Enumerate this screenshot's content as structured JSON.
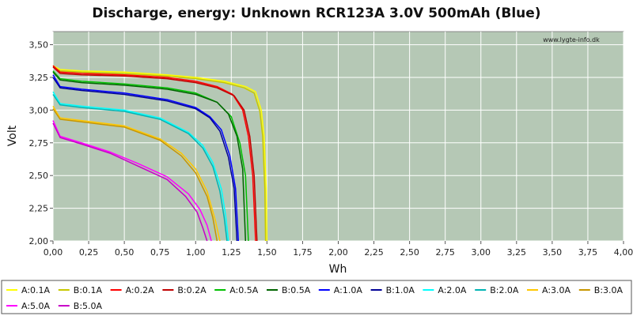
{
  "chart_data": {
    "type": "line",
    "title": "Discharge, energy: Unknown RCR123A 3.0V 500mAh (Blue)",
    "xlabel": "Wh",
    "ylabel": "Volt",
    "xlim": [
      0,
      4.0
    ],
    "ylim": [
      2.0,
      3.6
    ],
    "x_ticks": [
      "0,00",
      "0,25",
      "0,50",
      "0,75",
      "1,00",
      "1,25",
      "1,50",
      "1,75",
      "2,00",
      "2,25",
      "2,50",
      "2,75",
      "3,00",
      "3,25",
      "3,50",
      "3,75",
      "4,00"
    ],
    "y_ticks": [
      "2,00",
      "2,25",
      "2,50",
      "2,75",
      "3,00",
      "3,25",
      "3,50"
    ],
    "grid": true,
    "watermark": "www.lygte-info.dk",
    "legend_position": "bottom",
    "plot_background": "#b5c8b5",
    "series": [
      {
        "name": "A:0.1A",
        "color": "#ffff00",
        "points": [
          [
            0,
            3.34
          ],
          [
            0.05,
            3.31
          ],
          [
            0.2,
            3.3
          ],
          [
            0.5,
            3.29
          ],
          [
            0.8,
            3.27
          ],
          [
            1.0,
            3.25
          ],
          [
            1.2,
            3.22
          ],
          [
            1.35,
            3.18
          ],
          [
            1.42,
            3.14
          ],
          [
            1.46,
            3.0
          ],
          [
            1.48,
            2.8
          ],
          [
            1.495,
            2.4
          ],
          [
            1.5,
            2.0
          ]
        ]
      },
      {
        "name": "B:0.1A",
        "color": "#c8c800",
        "points": [
          [
            0,
            3.33
          ],
          [
            0.05,
            3.3
          ],
          [
            0.2,
            3.29
          ],
          [
            0.5,
            3.28
          ],
          [
            0.8,
            3.26
          ],
          [
            1.0,
            3.24
          ],
          [
            1.2,
            3.21
          ],
          [
            1.34,
            3.17
          ],
          [
            1.41,
            3.13
          ],
          [
            1.45,
            2.99
          ],
          [
            1.47,
            2.8
          ],
          [
            1.485,
            2.4
          ],
          [
            1.49,
            2.0
          ]
        ]
      },
      {
        "name": "A:0.2A",
        "color": "#ff0000",
        "points": [
          [
            0,
            3.34
          ],
          [
            0.05,
            3.29
          ],
          [
            0.2,
            3.28
          ],
          [
            0.5,
            3.27
          ],
          [
            0.8,
            3.25
          ],
          [
            1.0,
            3.22
          ],
          [
            1.15,
            3.18
          ],
          [
            1.26,
            3.12
          ],
          [
            1.33,
            3.0
          ],
          [
            1.37,
            2.8
          ],
          [
            1.4,
            2.5
          ],
          [
            1.42,
            2.0
          ]
        ]
      },
      {
        "name": "B:0.2A",
        "color": "#c00000",
        "points": [
          [
            0,
            3.33
          ],
          [
            0.05,
            3.28
          ],
          [
            0.2,
            3.27
          ],
          [
            0.5,
            3.26
          ],
          [
            0.8,
            3.24
          ],
          [
            1.0,
            3.21
          ],
          [
            1.15,
            3.17
          ],
          [
            1.27,
            3.11
          ],
          [
            1.34,
            3.0
          ],
          [
            1.38,
            2.8
          ],
          [
            1.41,
            2.5
          ],
          [
            1.43,
            2.0
          ]
        ]
      },
      {
        "name": "A:0.5A",
        "color": "#00c000",
        "points": [
          [
            0,
            3.3
          ],
          [
            0.05,
            3.24
          ],
          [
            0.2,
            3.22
          ],
          [
            0.5,
            3.2
          ],
          [
            0.8,
            3.17
          ],
          [
            1.0,
            3.13
          ],
          [
            1.15,
            3.06
          ],
          [
            1.25,
            2.95
          ],
          [
            1.31,
            2.75
          ],
          [
            1.35,
            2.5
          ],
          [
            1.37,
            2.0
          ]
        ]
      },
      {
        "name": "B:0.5A",
        "color": "#006400",
        "points": [
          [
            0,
            3.29
          ],
          [
            0.05,
            3.23
          ],
          [
            0.2,
            3.21
          ],
          [
            0.5,
            3.19
          ],
          [
            0.8,
            3.16
          ],
          [
            1.0,
            3.12
          ],
          [
            1.15,
            3.06
          ],
          [
            1.23,
            2.97
          ],
          [
            1.29,
            2.8
          ],
          [
            1.33,
            2.55
          ],
          [
            1.35,
            2.0
          ]
        ]
      },
      {
        "name": "A:1.0A",
        "color": "#0000ff",
        "points": [
          [
            0,
            3.27
          ],
          [
            0.05,
            3.18
          ],
          [
            0.2,
            3.16
          ],
          [
            0.5,
            3.13
          ],
          [
            0.8,
            3.08
          ],
          [
            1.0,
            3.02
          ],
          [
            1.1,
            2.95
          ],
          [
            1.18,
            2.85
          ],
          [
            1.24,
            2.65
          ],
          [
            1.28,
            2.4
          ],
          [
            1.3,
            2.0
          ]
        ]
      },
      {
        "name": "B:1.0A",
        "color": "#000096",
        "points": [
          [
            0,
            3.25
          ],
          [
            0.05,
            3.17
          ],
          [
            0.2,
            3.15
          ],
          [
            0.5,
            3.12
          ],
          [
            0.8,
            3.07
          ],
          [
            1.0,
            3.01
          ],
          [
            1.1,
            2.94
          ],
          [
            1.17,
            2.84
          ],
          [
            1.23,
            2.64
          ],
          [
            1.27,
            2.4
          ],
          [
            1.29,
            2.0
          ]
        ]
      },
      {
        "name": "A:2.0A",
        "color": "#00ffff",
        "points": [
          [
            0,
            3.14
          ],
          [
            0.05,
            3.05
          ],
          [
            0.2,
            3.03
          ],
          [
            0.5,
            3.0
          ],
          [
            0.75,
            2.94
          ],
          [
            0.95,
            2.83
          ],
          [
            1.05,
            2.73
          ],
          [
            1.12,
            2.6
          ],
          [
            1.18,
            2.4
          ],
          [
            1.21,
            2.2
          ],
          [
            1.23,
            2.0
          ]
        ]
      },
      {
        "name": "B:2.0A",
        "color": "#00b4b4",
        "points": [
          [
            0,
            3.12
          ],
          [
            0.05,
            3.04
          ],
          [
            0.2,
            3.02
          ],
          [
            0.5,
            2.99
          ],
          [
            0.75,
            2.93
          ],
          [
            0.95,
            2.82
          ],
          [
            1.05,
            2.71
          ],
          [
            1.12,
            2.57
          ],
          [
            1.17,
            2.38
          ],
          [
            1.2,
            2.18
          ],
          [
            1.22,
            2.0
          ]
        ]
      },
      {
        "name": "A:3.0A",
        "color": "#ffc800",
        "points": [
          [
            0,
            3.03
          ],
          [
            0.05,
            2.94
          ],
          [
            0.2,
            2.92
          ],
          [
            0.5,
            2.88
          ],
          [
            0.75,
            2.78
          ],
          [
            0.9,
            2.67
          ],
          [
            1.0,
            2.55
          ],
          [
            1.08,
            2.38
          ],
          [
            1.14,
            2.15
          ],
          [
            1.17,
            2.0
          ]
        ]
      },
      {
        "name": "B:3.0A",
        "color": "#c89600",
        "points": [
          [
            0,
            3.01
          ],
          [
            0.05,
            2.93
          ],
          [
            0.2,
            2.91
          ],
          [
            0.5,
            2.87
          ],
          [
            0.75,
            2.77
          ],
          [
            0.9,
            2.65
          ],
          [
            1.0,
            2.52
          ],
          [
            1.08,
            2.34
          ],
          [
            1.12,
            2.18
          ],
          [
            1.15,
            2.0
          ]
        ]
      },
      {
        "name": "A:5.0A",
        "color": "#ff00ff",
        "points": [
          [
            0,
            2.92
          ],
          [
            0.05,
            2.8
          ],
          [
            0.2,
            2.75
          ],
          [
            0.4,
            2.68
          ],
          [
            0.6,
            2.59
          ],
          [
            0.8,
            2.49
          ],
          [
            0.95,
            2.36
          ],
          [
            1.03,
            2.24
          ],
          [
            1.08,
            2.12
          ],
          [
            1.11,
            2.0
          ]
        ]
      },
      {
        "name": "B:5.0A",
        "color": "#c800c8",
        "points": [
          [
            0,
            2.9
          ],
          [
            0.05,
            2.79
          ],
          [
            0.2,
            2.74
          ],
          [
            0.4,
            2.67
          ],
          [
            0.6,
            2.57
          ],
          [
            0.8,
            2.47
          ],
          [
            0.93,
            2.34
          ],
          [
            1.01,
            2.22
          ],
          [
            1.05,
            2.1
          ],
          [
            1.08,
            2.0
          ]
        ]
      }
    ]
  }
}
